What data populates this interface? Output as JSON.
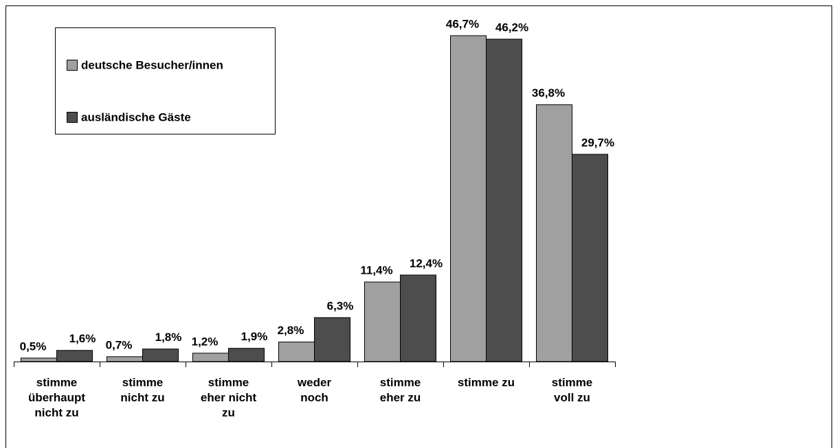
{
  "chart_data": {
    "type": "bar",
    "categories": [
      "stimme\nüberhaupt\nnicht zu",
      "stimme\nnicht zu",
      "stimme\neher nicht\nzu",
      "weder\nnoch",
      "stimme\neher zu",
      "stimme zu",
      "stimme\nvoll zu"
    ],
    "series": [
      {
        "name": "deutsche Besucher/innen",
        "color": "#a0a0a0",
        "values": [
          0.5,
          0.7,
          1.2,
          2.8,
          11.4,
          46.7,
          36.8
        ],
        "value_labels": [
          "0,5%",
          "0,7%",
          "1,2%",
          "2,8%",
          "11,4%",
          "46,7%",
          "36,8%"
        ]
      },
      {
        "name": "ausländische Gäste",
        "color": "#4d4d4d",
        "values": [
          1.6,
          1.8,
          1.9,
          6.3,
          12.4,
          46.2,
          29.7
        ],
        "value_labels": [
          "1,6%",
          "1,8%",
          "1,9%",
          "6,3%",
          "12,4%",
          "46,2%",
          "29,7%"
        ]
      }
    ],
    "ylim": [
      0,
      50
    ],
    "legend": "upper left"
  }
}
